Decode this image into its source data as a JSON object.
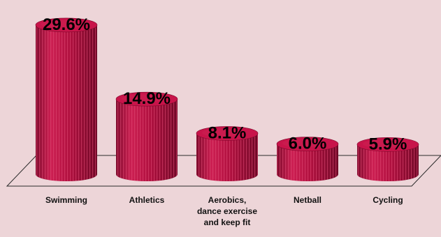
{
  "chart_data": {
    "type": "bar",
    "style": "3d-cylinder",
    "categories": [
      "Swimming",
      "Athletics",
      "Aerobics, dance exercise and keep fit",
      "Netball",
      "Cycling"
    ],
    "category_label_lines": [
      [
        "Swimming"
      ],
      [
        "Athletics"
      ],
      [
        "Aerobics,",
        "dance exercise",
        "and keep fit"
      ],
      [
        "Netball"
      ],
      [
        "Cycling"
      ]
    ],
    "values": [
      29.6,
      14.9,
      8.1,
      6.0,
      5.9
    ],
    "value_labels": [
      "29.6%",
      "14.9%",
      "8.1%",
      "6.0%",
      "5.9%"
    ],
    "unit": "%",
    "ylim": [
      0,
      30
    ],
    "grid": false,
    "legend": "none",
    "colors": {
      "background": "#edd5d8",
      "bar_body": "#b0103f",
      "bar_shade": "#7e0a2c",
      "bar_highlight": "#cc1f52",
      "bar_top": "#c8144a",
      "stripe": "#e04a75",
      "floor_line": "#2a2a2a"
    }
  }
}
